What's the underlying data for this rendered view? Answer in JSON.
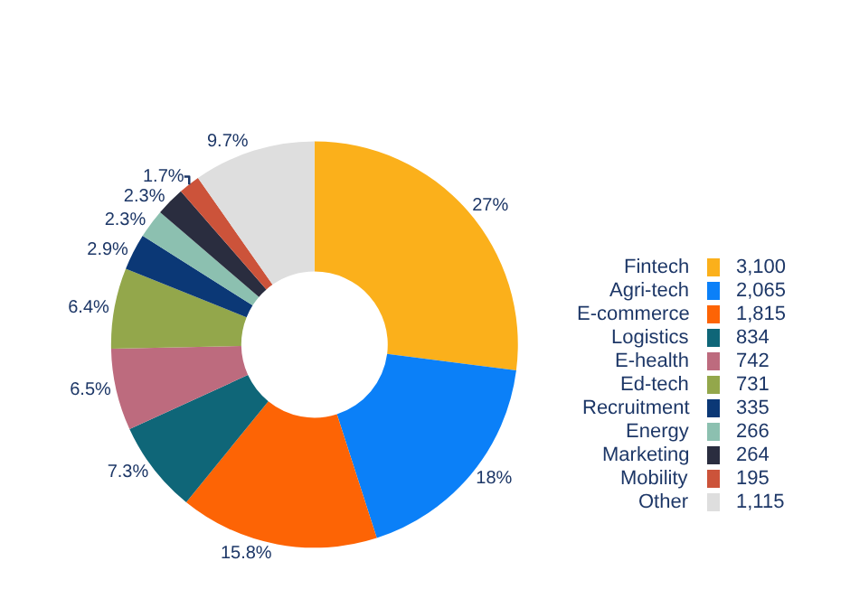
{
  "chart_data": {
    "type": "donut",
    "categories": [
      "Fintech",
      "Agri-tech",
      "E-commerce",
      "Logistics",
      "E-health",
      "Ed-tech",
      "Recruitment",
      "Energy",
      "Marketing",
      "Mobility",
      "Other"
    ],
    "values": [
      27,
      18,
      15.8,
      7.3,
      6.5,
      6.4,
      2.9,
      2.3,
      2.3,
      1.7,
      9.7
    ],
    "annotations": [
      "3,100",
      "2,065",
      "1,815",
      "834",
      "742",
      "731",
      "335",
      "266",
      "264",
      "195",
      "1,115"
    ],
    "value_labels": [
      "27%",
      "18%",
      "15.8%",
      "7.3%",
      "6.5%",
      "6.4%",
      "2.9%",
      "2.3%",
      "2.3%",
      "1.7%",
      "9.7%"
    ],
    "colors": [
      "#fbb01b",
      "#0b80f8",
      "#fd6405",
      "#0f6678",
      "#bd6b7e",
      "#93a74b",
      "#0b3876",
      "#8cc0b0",
      "#2a2d3f",
      "#cc533a",
      "#dedede"
    ],
    "legend": "right"
  }
}
